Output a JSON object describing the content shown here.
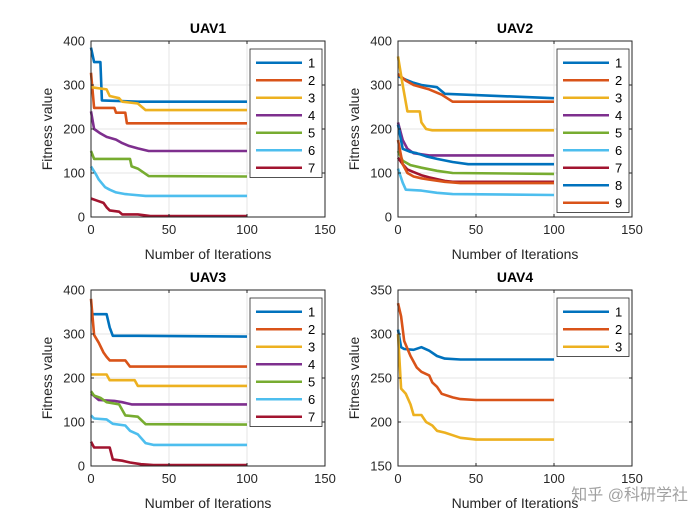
{
  "watermark": "知乎 @科研学社",
  "colors": [
    "#0072BD",
    "#D95319",
    "#EDB120",
    "#7E2F8E",
    "#77AC30",
    "#4DBEEE",
    "#A2142F"
  ],
  "chart_data": [
    {
      "type": "line",
      "title": "UAV1",
      "xlabel": "Number of Iterations",
      "ylabel": "Fitness value",
      "xlim": [
        0,
        150
      ],
      "ylim": [
        0,
        400
      ],
      "xticks": [
        0,
        50,
        100,
        150
      ],
      "yticks": [
        0,
        100,
        200,
        300,
        400
      ],
      "grid": true,
      "legend_position": "top-right",
      "series": [
        {
          "name": "1",
          "color": "#0072BD",
          "points": [
            [
              0,
              385
            ],
            [
              2,
              352
            ],
            [
              6,
              352
            ],
            [
              7,
              265
            ],
            [
              30,
              262
            ],
            [
              100,
              262
            ]
          ]
        },
        {
          "name": "2",
          "color": "#D95319",
          "points": [
            [
              0,
              328
            ],
            [
              2,
              248
            ],
            [
              15,
              248
            ],
            [
              16,
              237
            ],
            [
              22,
              237
            ],
            [
              23,
              213
            ],
            [
              100,
              213
            ]
          ]
        },
        {
          "name": "3",
          "color": "#EDB120",
          "points": [
            [
              0,
              295
            ],
            [
              10,
              290
            ],
            [
              12,
              275
            ],
            [
              18,
              270
            ],
            [
              20,
              262
            ],
            [
              30,
              258
            ],
            [
              35,
              243
            ],
            [
              100,
              243
            ]
          ]
        },
        {
          "name": "4",
          "color": "#7E2F8E",
          "points": [
            [
              0,
              240
            ],
            [
              2,
              200
            ],
            [
              6,
              190
            ],
            [
              10,
              182
            ],
            [
              16,
              176
            ],
            [
              20,
              168
            ],
            [
              24,
              162
            ],
            [
              30,
              156
            ],
            [
              37,
              150
            ],
            [
              100,
              150
            ]
          ]
        },
        {
          "name": "5",
          "color": "#77AC30",
          "points": [
            [
              0,
              150
            ],
            [
              2,
              132
            ],
            [
              25,
              132
            ],
            [
              26,
              115
            ],
            [
              30,
              110
            ],
            [
              37,
              93
            ],
            [
              100,
              92
            ]
          ]
        },
        {
          "name": "6",
          "color": "#4DBEEE",
          "points": [
            [
              0,
              115
            ],
            [
              3,
              98
            ],
            [
              5,
              85
            ],
            [
              9,
              68
            ],
            [
              12,
              62
            ],
            [
              16,
              56
            ],
            [
              22,
              52
            ],
            [
              35,
              48
            ],
            [
              100,
              48
            ]
          ]
        },
        {
          "name": "7",
          "color": "#A2142F",
          "points": [
            [
              0,
              42
            ],
            [
              4,
              37
            ],
            [
              8,
              32
            ],
            [
              10,
              22
            ],
            [
              12,
              15
            ],
            [
              18,
              12
            ],
            [
              20,
              6
            ],
            [
              30,
              6
            ],
            [
              38,
              2
            ],
            [
              100,
              2
            ]
          ]
        }
      ]
    },
    {
      "type": "line",
      "title": "UAV2",
      "xlabel": "Number of Iterations",
      "ylabel": "Fitness value",
      "xlim": [
        0,
        150
      ],
      "ylim": [
        0,
        400
      ],
      "xticks": [
        0,
        50,
        100,
        150
      ],
      "yticks": [
        0,
        100,
        200,
        300,
        400
      ],
      "grid": true,
      "legend_position": "top-right",
      "series": [
        {
          "name": "1",
          "color": "#0072BD",
          "points": [
            [
              0,
              320
            ],
            [
              5,
              312
            ],
            [
              10,
              305
            ],
            [
              15,
              300
            ],
            [
              25,
              295
            ],
            [
              30,
              280
            ],
            [
              100,
              270
            ]
          ]
        },
        {
          "name": "2",
          "color": "#D95319",
          "points": [
            [
              0,
              325
            ],
            [
              5,
              310
            ],
            [
              10,
              300
            ],
            [
              20,
              290
            ],
            [
              28,
              278
            ],
            [
              35,
              262
            ],
            [
              100,
              262
            ]
          ]
        },
        {
          "name": "3",
          "color": "#EDB120",
          "points": [
            [
              0,
              365
            ],
            [
              3,
              300
            ],
            [
              6,
              240
            ],
            [
              14,
              240
            ],
            [
              15,
              215
            ],
            [
              18,
              200
            ],
            [
              22,
              197
            ],
            [
              100,
              197
            ]
          ]
        },
        {
          "name": "4",
          "color": "#7E2F8E",
          "points": [
            [
              0,
              215
            ],
            [
              3,
              175
            ],
            [
              6,
              155
            ],
            [
              10,
              145
            ],
            [
              20,
              140
            ],
            [
              100,
              140
            ]
          ]
        },
        {
          "name": "5",
          "color": "#77AC30",
          "points": [
            [
              0,
              150
            ],
            [
              3,
              128
            ],
            [
              8,
              118
            ],
            [
              15,
              112
            ],
            [
              25,
              105
            ],
            [
              35,
              100
            ],
            [
              100,
              98
            ]
          ]
        },
        {
          "name": "6",
          "color": "#4DBEEE",
          "points": [
            [
              0,
              110
            ],
            [
              3,
              78
            ],
            [
              5,
              62
            ],
            [
              15,
              60
            ],
            [
              25,
              55
            ],
            [
              35,
              52
            ],
            [
              100,
              50
            ]
          ]
        },
        {
          "name": "7",
          "color": "#A2142F",
          "points": [
            [
              0,
              135
            ],
            [
              3,
              120
            ],
            [
              6,
              108
            ],
            [
              10,
              102
            ],
            [
              15,
              95
            ],
            [
              20,
              90
            ],
            [
              25,
              86
            ],
            [
              30,
              82
            ],
            [
              35,
              80
            ],
            [
              100,
              80
            ]
          ]
        },
        {
          "name": "8",
          "color": "#0072BD",
          "points": [
            [
              0,
              210
            ],
            [
              3,
              155
            ],
            [
              8,
              148
            ],
            [
              12,
              145
            ],
            [
              18,
              138
            ],
            [
              25,
              132
            ],
            [
              35,
              125
            ],
            [
              45,
              120
            ],
            [
              100,
              120
            ]
          ]
        },
        {
          "name": "9",
          "color": "#D95319",
          "points": [
            [
              0,
              175
            ],
            [
              3,
              120
            ],
            [
              6,
              100
            ],
            [
              10,
              92
            ],
            [
              15,
              88
            ],
            [
              20,
              85
            ],
            [
              30,
              80
            ],
            [
              40,
              77
            ],
            [
              100,
              77
            ]
          ]
        }
      ]
    },
    {
      "type": "line",
      "title": "UAV3",
      "xlabel": "Number of Iterations",
      "ylabel": "Fitness value",
      "xlim": [
        0,
        150
      ],
      "ylim": [
        0,
        400
      ],
      "xticks": [
        0,
        50,
        100,
        150
      ],
      "yticks": [
        0,
        100,
        200,
        300,
        400
      ],
      "grid": true,
      "legend_position": "top-right",
      "series": [
        {
          "name": "1",
          "color": "#0072BD",
          "points": [
            [
              0,
              345
            ],
            [
              10,
              345
            ],
            [
              12,
              315
            ],
            [
              14,
              296
            ],
            [
              30,
              296
            ],
            [
              100,
              294
            ]
          ]
        },
        {
          "name": "2",
          "color": "#D95319",
          "points": [
            [
              0,
              380
            ],
            [
              2,
              298
            ],
            [
              5,
              280
            ],
            [
              8,
              258
            ],
            [
              10,
              248
            ],
            [
              12,
              240
            ],
            [
              22,
              240
            ],
            [
              25,
              226
            ],
            [
              100,
              226
            ]
          ]
        },
        {
          "name": "3",
          "color": "#EDB120",
          "points": [
            [
              0,
              208
            ],
            [
              10,
              208
            ],
            [
              12,
              195
            ],
            [
              28,
              195
            ],
            [
              30,
              182
            ],
            [
              100,
              182
            ]
          ]
        },
        {
          "name": "4",
          "color": "#7E2F8E",
          "points": [
            [
              0,
              165
            ],
            [
              5,
              150
            ],
            [
              15,
              148
            ],
            [
              20,
              145
            ],
            [
              26,
              140
            ],
            [
              100,
              140
            ]
          ]
        },
        {
          "name": "5",
          "color": "#77AC30",
          "points": [
            [
              0,
              170
            ],
            [
              2,
              160
            ],
            [
              6,
              155
            ],
            [
              10,
              145
            ],
            [
              18,
              140
            ],
            [
              22,
              115
            ],
            [
              30,
              112
            ],
            [
              35,
              95
            ],
            [
              100,
              94
            ]
          ]
        },
        {
          "name": "6",
          "color": "#4DBEEE",
          "points": [
            [
              0,
              115
            ],
            [
              2,
              108
            ],
            [
              10,
              106
            ],
            [
              14,
              96
            ],
            [
              22,
              92
            ],
            [
              25,
              80
            ],
            [
              30,
              72
            ],
            [
              35,
              52
            ],
            [
              40,
              48
            ],
            [
              100,
              48
            ]
          ]
        },
        {
          "name": "7",
          "color": "#A2142F",
          "points": [
            [
              0,
              55
            ],
            [
              2,
              42
            ],
            [
              12,
              42
            ],
            [
              14,
              15
            ],
            [
              20,
              12
            ],
            [
              25,
              8
            ],
            [
              32,
              4
            ],
            [
              40,
              2
            ],
            [
              100,
              2
            ]
          ]
        }
      ]
    },
    {
      "type": "line",
      "title": "UAV4",
      "xlabel": "Number of Iterations",
      "ylabel": "Fitness value",
      "xlim": [
        0,
        150
      ],
      "ylim": [
        150,
        350
      ],
      "xticks": [
        0,
        50,
        100,
        150
      ],
      "yticks": [
        150,
        200,
        250,
        300,
        350
      ],
      "grid": true,
      "legend_position": "top-right",
      "series": [
        {
          "name": "1",
          "color": "#0072BD",
          "points": [
            [
              0,
              305
            ],
            [
              2,
              285
            ],
            [
              4,
              283
            ],
            [
              10,
              282
            ],
            [
              15,
              285
            ],
            [
              20,
              281
            ],
            [
              25,
              275
            ],
            [
              30,
              272
            ],
            [
              40,
              271
            ],
            [
              100,
              271
            ]
          ]
        },
        {
          "name": "2",
          "color": "#D95319",
          "points": [
            [
              0,
              335
            ],
            [
              2,
              320
            ],
            [
              4,
              292
            ],
            [
              8,
              275
            ],
            [
              12,
              262
            ],
            [
              15,
              257
            ],
            [
              20,
              253
            ],
            [
              22,
              245
            ],
            [
              25,
              240
            ],
            [
              28,
              232
            ],
            [
              35,
              228
            ],
            [
              40,
              226
            ],
            [
              50,
              225
            ],
            [
              100,
              225
            ]
          ]
        },
        {
          "name": "3",
          "color": "#EDB120",
          "points": [
            [
              0,
              300
            ],
            [
              2,
              238
            ],
            [
              5,
              232
            ],
            [
              8,
              220
            ],
            [
              10,
              208
            ],
            [
              15,
              208
            ],
            [
              18,
              200
            ],
            [
              22,
              196
            ],
            [
              25,
              190
            ],
            [
              30,
              188
            ],
            [
              35,
              185
            ],
            [
              40,
              182
            ],
            [
              50,
              180
            ],
            [
              100,
              180
            ]
          ]
        }
      ]
    }
  ]
}
